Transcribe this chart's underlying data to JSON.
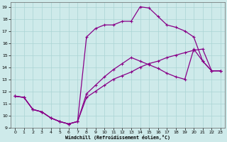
{
  "xlabel": "Windchill (Refroidissement éolien,°C)",
  "background_color": "#ceeaea",
  "grid_color": "#aad4d4",
  "line_color": "#880088",
  "xlim": [
    -0.5,
    23.5
  ],
  "ylim": [
    9,
    19.4
  ],
  "xticks": [
    0,
    1,
    2,
    3,
    4,
    5,
    6,
    7,
    8,
    9,
    10,
    11,
    12,
    13,
    14,
    15,
    16,
    17,
    18,
    19,
    20,
    21,
    22,
    23
  ],
  "yticks": [
    9,
    10,
    11,
    12,
    13,
    14,
    15,
    16,
    17,
    18,
    19
  ],
  "line1_x": [
    0,
    1,
    2,
    3,
    4,
    5,
    6,
    7,
    8,
    9,
    10,
    11,
    12,
    13,
    14,
    15,
    16,
    17,
    18,
    19,
    20,
    21,
    22,
    23
  ],
  "line1_y": [
    11.6,
    11.5,
    10.5,
    10.3,
    9.8,
    9.5,
    9.3,
    9.5,
    16.5,
    17.2,
    17.5,
    17.5,
    17.8,
    17.8,
    19.0,
    18.9,
    18.2,
    17.5,
    17.3,
    17.0,
    16.5,
    14.5,
    13.7,
    13.7
  ],
  "line2_x": [
    0,
    1,
    2,
    3,
    4,
    5,
    6,
    7,
    8,
    9,
    10,
    11,
    12,
    13,
    14,
    15,
    16,
    17,
    18,
    19,
    20,
    21,
    22,
    23
  ],
  "line2_y": [
    11.6,
    11.5,
    10.5,
    10.3,
    9.8,
    9.5,
    9.3,
    9.5,
    11.8,
    12.5,
    13.2,
    13.8,
    14.3,
    14.8,
    14.5,
    14.2,
    13.9,
    13.5,
    13.2,
    13.0,
    15.5,
    14.5,
    13.7,
    13.7
  ],
  "line3_x": [
    0,
    1,
    2,
    3,
    4,
    5,
    6,
    7,
    8,
    9,
    10,
    11,
    12,
    13,
    14,
    15,
    16,
    17,
    18,
    19,
    20,
    21,
    22,
    23
  ],
  "line3_y": [
    11.6,
    11.5,
    10.5,
    10.3,
    9.8,
    9.5,
    9.3,
    9.5,
    11.5,
    12.0,
    12.5,
    13.0,
    13.3,
    13.6,
    14.0,
    14.3,
    14.5,
    14.8,
    15.0,
    15.2,
    15.4,
    15.5,
    13.7,
    13.7
  ]
}
